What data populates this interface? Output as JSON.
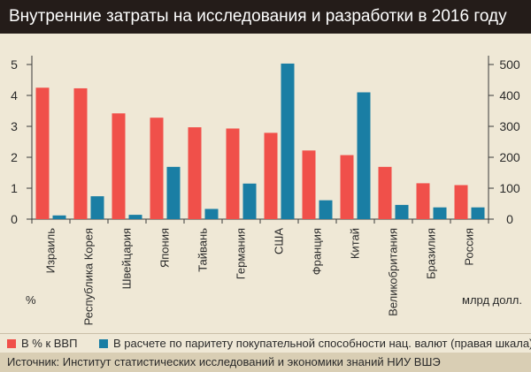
{
  "title": "Внутренние затраты на исследования и разработки в 2016 году",
  "chart_data": {
    "type": "bar",
    "categories": [
      "Израиль",
      "Республика Корея",
      "Швейцария",
      "Япония",
      "Тайвань",
      "Германия",
      "США",
      "Франция",
      "Китай",
      "Великобритания",
      "Бразилия",
      "Россия"
    ],
    "series": [
      {
        "name": "В % к ВВП",
        "axis": "left",
        "color": "#f0504a",
        "values": [
          4.25,
          4.23,
          3.42,
          3.28,
          2.97,
          2.93,
          2.79,
          2.22,
          2.07,
          1.69,
          1.16,
          1.1
        ]
      },
      {
        "name": "В расчете по паритету покупательной способности нац. валют (правая шкала)",
        "axis": "right",
        "color": "#1a7ea4",
        "values": [
          12,
          74,
          14,
          169,
          33,
          115,
          503,
          61,
          410,
          46,
          38,
          38
        ]
      }
    ],
    "y_left": {
      "min": 0,
      "max": 5,
      "ticks": [
        0,
        1,
        2,
        3,
        4,
        5
      ],
      "unit": "%"
    },
    "y_right": {
      "min": 0,
      "max": 500,
      "ticks": [
        0,
        100,
        200,
        300,
        400,
        500
      ],
      "unit": "млрд долл."
    },
    "grid": false,
    "legend_position": "bottom"
  },
  "legend": {
    "items": [
      {
        "label": "В % к ВВП",
        "color": "#f0504a"
      },
      {
        "label": "В расчете по паритету покупательной способности нац. валют (правая шкала)",
        "color": "#1a7ea4"
      }
    ]
  },
  "source": "Источник: Институт статистических исследований и экономики знаний НИУ ВШЭ"
}
